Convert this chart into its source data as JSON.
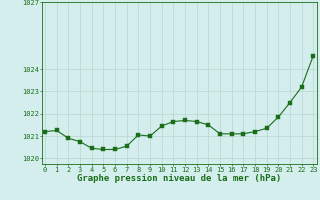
{
  "x": [
    0,
    1,
    2,
    3,
    4,
    5,
    6,
    7,
    8,
    9,
    10,
    11,
    12,
    13,
    14,
    15,
    16,
    17,
    18,
    19,
    20,
    21,
    22,
    23
  ],
  "y": [
    1021.2,
    1021.25,
    1020.9,
    1020.75,
    1020.45,
    1020.4,
    1020.4,
    1020.55,
    1021.05,
    1021.0,
    1021.45,
    1021.65,
    1021.7,
    1021.65,
    1021.5,
    1021.1,
    1021.1,
    1021.1,
    1021.2,
    1021.35,
    1021.85,
    1022.5,
    1023.2,
    1024.6
  ],
  "line_color": "#1a6e1a",
  "marker": "s",
  "marker_size": 2.2,
  "background_color": "#d4eeed",
  "grid_color": "#b8d4d0",
  "xlabel": "Graphe pression niveau de la mer (hPa)",
  "xlabel_fontsize": 6.5,
  "xlabel_color": "#1a6e1a",
  "yticks": [
    1020,
    1021,
    1022,
    1023,
    1024,
    1027
  ],
  "ylim": [
    1019.75,
    1027.0
  ],
  "xlim": [
    -0.3,
    23.3
  ],
  "xticks": [
    0,
    1,
    2,
    3,
    4,
    5,
    6,
    7,
    8,
    9,
    10,
    11,
    12,
    13,
    14,
    15,
    16,
    17,
    18,
    19,
    20,
    21,
    22,
    23
  ],
  "tick_color": "#1a6e1a",
  "tick_fontsize": 5.0,
  "axis_color": "#1a6e1a",
  "linewidth": 0.8
}
